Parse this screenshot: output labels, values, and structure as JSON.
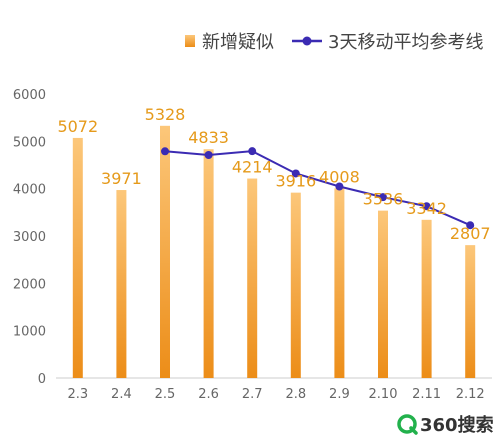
{
  "chart_data": {
    "type": "bar",
    "categories": [
      "2.3",
      "2.4",
      "2.5",
      "2.6",
      "2.7",
      "2.8",
      "2.9",
      "2.10",
      "2.11",
      "2.12"
    ],
    "series": [
      {
        "name": "新增疑似",
        "type": "bar",
        "values": [
          5072,
          3971,
          5328,
          4833,
          4214,
          3916,
          4008,
          3536,
          3342,
          2807
        ],
        "value_labels": [
          "5072",
          "3971",
          "5328",
          "4833",
          "4214",
          "3916",
          "4008",
          "3536",
          "3342",
          "2807"
        ]
      },
      {
        "name": "3天移动平均参考线",
        "type": "line",
        "values": [
          null,
          null,
          4790,
          4711,
          4792,
          4321,
          4046,
          3820,
          3629,
          3228
        ]
      }
    ],
    "ylim": [
      0,
      6000
    ],
    "yticks": [
      "0",
      "1000",
      "2000",
      "3000",
      "4000",
      "5000",
      "6000"
    ],
    "grid": false,
    "legend_position": "top-right",
    "colors": {
      "bar_top": "#fcc77a",
      "bar_bottom": "#ec8d18",
      "line": "#3b2bb3",
      "label": "#e59a1b",
      "axis": "#cccccc"
    }
  },
  "legend": {
    "bar_label": "新增疑似",
    "line_label": "3天移动平均参考线"
  },
  "brand": {
    "text": "360搜索",
    "icon": "360-search-logo-icon"
  }
}
